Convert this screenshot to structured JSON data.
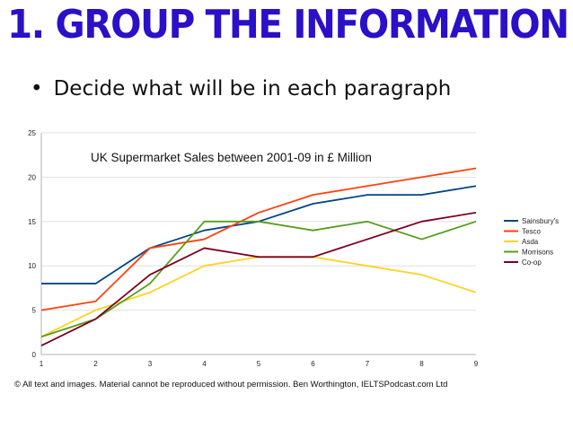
{
  "slide": {
    "title": "1. GROUP THE INFORMATION",
    "bullet": "Decide what will be in each paragraph",
    "footer": "© All text and images. Material cannot be reproduced without permission. Ben Worthington, IELTSPodcast.com Ltd"
  },
  "chart_data": {
    "type": "line",
    "title": "UK Supermarket Sales between 2001-09 in £ Million",
    "x": [
      1,
      2,
      3,
      4,
      5,
      6,
      7,
      8,
      9
    ],
    "xlim": [
      1,
      9
    ],
    "ylim": [
      0,
      25
    ],
    "yticks": [
      0,
      5,
      10,
      15,
      20,
      25
    ],
    "grid": true,
    "legend": "right",
    "series": [
      {
        "name": "Sainsbury's",
        "color": "#004586",
        "values": [
          8,
          8,
          12,
          14,
          15,
          17,
          18,
          18,
          19
        ]
      },
      {
        "name": "Tesco",
        "color": "#ff420e",
        "values": [
          5,
          6,
          12,
          13,
          16,
          18,
          19,
          20,
          21
        ]
      },
      {
        "name": "Asda",
        "color": "#ffd320",
        "values": [
          2,
          5,
          7,
          10,
          11,
          11,
          10,
          9,
          7
        ]
      },
      {
        "name": "Morrisons",
        "color": "#579d1c",
        "values": [
          2,
          4,
          8,
          15,
          15,
          14,
          15,
          13,
          15
        ]
      },
      {
        "name": "Co-op",
        "color": "#7e0021",
        "values": [
          1,
          4,
          9,
          12,
          11,
          11,
          13,
          15,
          16
        ]
      }
    ]
  }
}
